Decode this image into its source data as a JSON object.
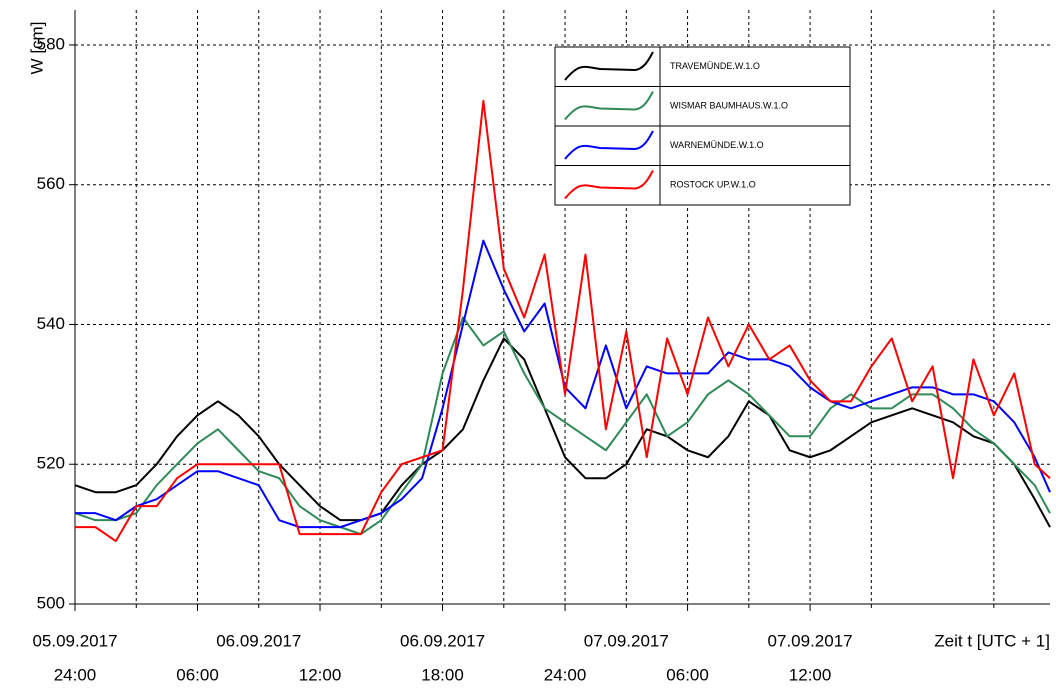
{
  "chart_data": {
    "type": "line",
    "ylabel": "W [cm]",
    "xlabel": "Zeit t [UTC + 1]",
    "x": [
      0,
      1,
      2,
      3,
      4,
      5,
      6,
      7,
      8,
      9,
      10,
      11,
      12,
      13,
      14,
      15,
      16,
      17,
      18,
      19,
      20,
      21,
      22,
      23,
      24,
      25,
      26,
      27,
      28,
      29,
      30,
      31,
      32,
      33,
      34,
      35,
      36,
      37,
      38,
      39,
      40,
      41,
      42,
      43,
      44,
      45,
      46,
      47,
      47.75
    ],
    "series": [
      {
        "name": "TRAVEMÜNDE.W.1.O",
        "color": "#000000",
        "values": [
          517,
          516,
          516,
          517,
          520,
          524,
          527,
          529,
          527,
          524,
          520,
          517,
          514,
          512,
          512,
          513,
          517,
          520,
          522,
          525,
          532,
          538,
          535,
          528,
          521,
          518,
          518,
          520,
          525,
          524,
          522,
          521,
          524,
          529,
          527,
          522,
          521,
          522,
          524,
          526,
          527,
          528,
          527,
          526,
          524,
          523,
          520,
          515,
          511
        ]
      },
      {
        "name": "WISMAR BAUMHAUS.W.1.O",
        "color": "#2e8b57",
        "values": [
          513,
          512,
          512,
          513,
          517,
          520,
          523,
          525,
          522,
          519,
          518,
          514,
          512,
          511,
          510,
          512,
          516,
          520,
          533,
          541,
          537,
          539,
          533,
          528,
          526,
          524,
          522,
          526,
          530,
          524,
          526,
          530,
          532,
          530,
          527,
          524,
          524,
          528,
          530,
          528,
          528,
          530,
          530,
          528,
          525,
          523,
          520,
          517,
          513
        ]
      },
      {
        "name": "WARNEMÜNDE.W.1.O",
        "color": "#0000ff",
        "values": [
          513,
          513,
          512,
          514,
          515,
          517,
          519,
          519,
          518,
          517,
          512,
          511,
          511,
          511,
          512,
          513,
          515,
          518,
          528,
          540,
          552,
          545,
          539,
          543,
          531,
          528,
          537,
          528,
          534,
          533,
          533,
          533,
          536,
          535,
          535,
          534,
          531,
          529,
          528,
          529,
          530,
          531,
          531,
          530,
          530,
          529,
          526,
          521,
          516
        ]
      },
      {
        "name": "ROSTOCK UP.W.1.O",
        "color": "#ff0000",
        "values": [
          511,
          511,
          509,
          514,
          514,
          518,
          520,
          520,
          520,
          520,
          520,
          510,
          510,
          510,
          510,
          516,
          520,
          521,
          522,
          545,
          572,
          548,
          541,
          550,
          530,
          550,
          525,
          539,
          521,
          538,
          530,
          541,
          534,
          540,
          535,
          537,
          532,
          529,
          529,
          534,
          538,
          529,
          534,
          518,
          535,
          527,
          533,
          520,
          518
        ]
      }
    ],
    "xlim": [
      0,
      47.75
    ],
    "ylim": [
      500,
      585
    ],
    "yticks": [
      500,
      520,
      540,
      560,
      580
    ],
    "xticks": [
      {
        "value": 0,
        "label": "24:00"
      },
      {
        "value": 6,
        "label": "06:00"
      },
      {
        "value": 12,
        "label": "12:00"
      },
      {
        "value": 18,
        "label": "18:00"
      },
      {
        "value": 24,
        "label": "24:00"
      },
      {
        "value": 30,
        "label": "06:00"
      },
      {
        "value": 36,
        "label": "12:00"
      }
    ],
    "xminor": [
      3,
      9,
      15,
      21,
      27,
      33,
      39,
      45
    ],
    "x_date_labels": [
      {
        "value": 0,
        "label": "05.09.2017"
      },
      {
        "value": 9,
        "label": "06.09.2017"
      },
      {
        "value": 18,
        "label": "06.09.2017"
      },
      {
        "value": 27,
        "label": "07.09.2017"
      },
      {
        "value": 36,
        "label": "07.09.2017"
      }
    ],
    "grid": true
  }
}
